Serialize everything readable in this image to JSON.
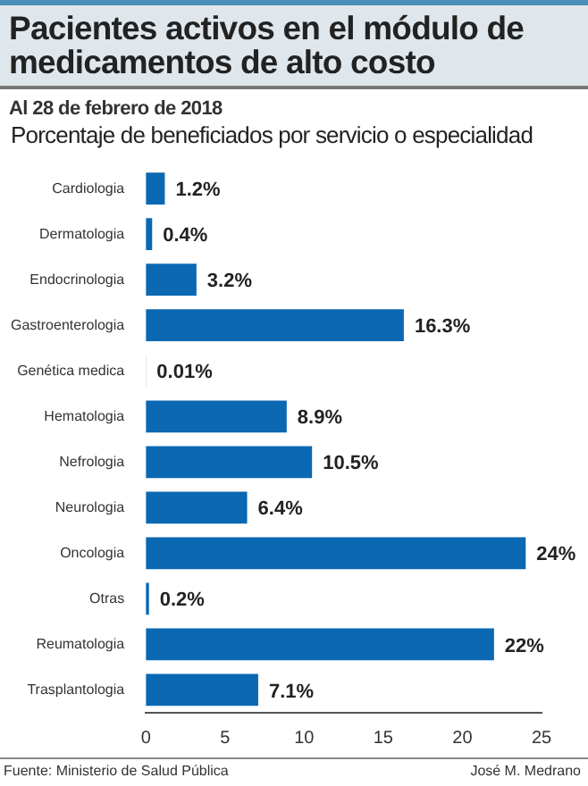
{
  "chart_data": {
    "type": "bar",
    "orientation": "horizontal",
    "title": "Pacientes activos en el módulo de medicamentos de alto costo",
    "subtitle": "Al 28 de febrero de 2018",
    "categories": [
      "Cardiologia",
      "Dermatologia",
      "Endocrinologia",
      "Gastroenterologia",
      "Genética medica",
      "Hematologia",
      "Nefrologia",
      "Neurologia",
      "Oncologia",
      "Otras",
      "Reumatologia",
      "Trasplantologia"
    ],
    "values": [
      1.2,
      0.4,
      3.2,
      16.3,
      0.01,
      8.9,
      10.5,
      6.4,
      24,
      0.2,
      22,
      7.1
    ],
    "value_labels": [
      "1.2%",
      "0.4%",
      "3.2%",
      "16.3%",
      "0.01%",
      "8.9%",
      "10.5%",
      "6.4%",
      "24%",
      "0.2%",
      "22%",
      "7.1%"
    ],
    "color": "#0b68b3",
    "xlim": [
      0,
      25
    ],
    "xticks": [
      0,
      5,
      10,
      15,
      20,
      25
    ],
    "grid": false,
    "legend": false,
    "annotations": [
      "Porcentaje de beneficiados por servicio o especialidad",
      "Fuente: Ministerio de Salud Pública",
      "José M. Medrano"
    ]
  }
}
